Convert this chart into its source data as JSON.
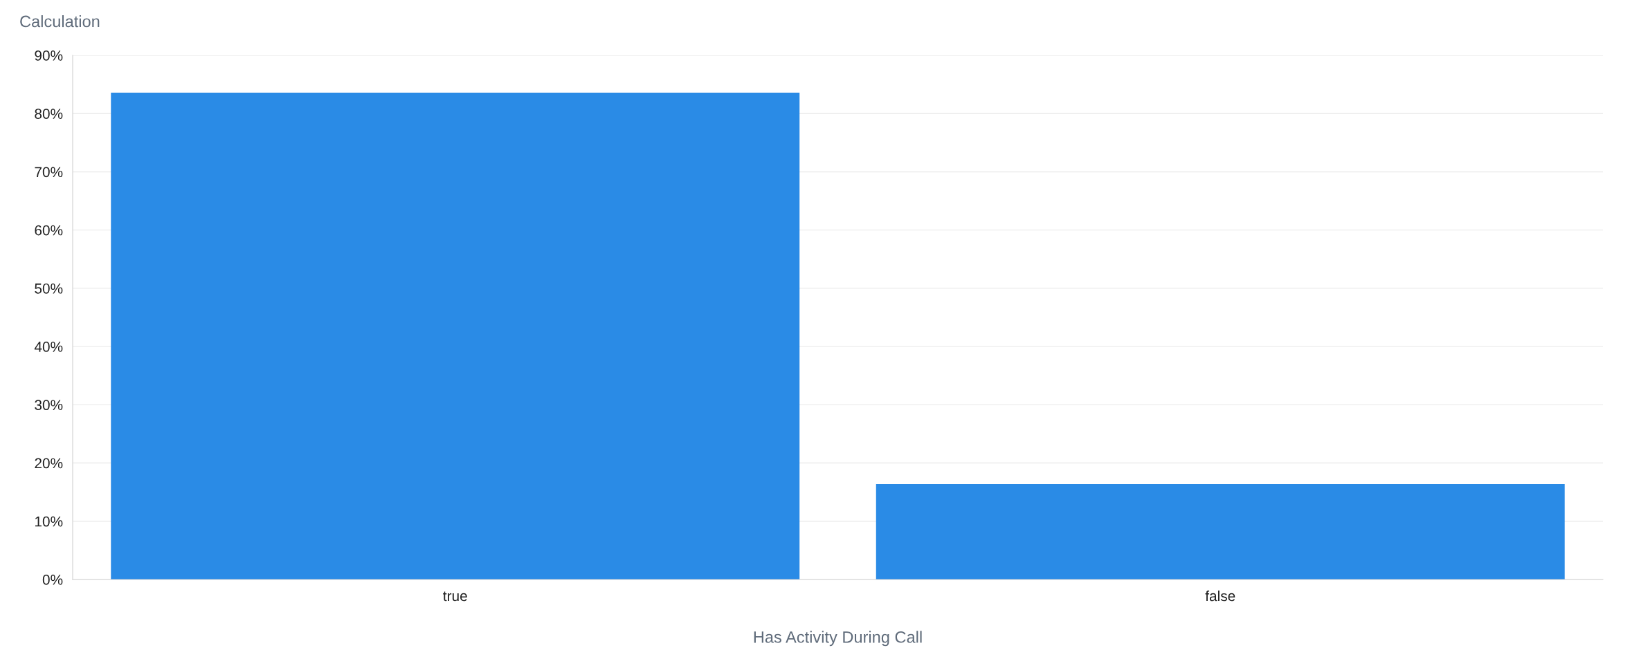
{
  "chart_data": {
    "type": "bar",
    "ylabel": "Calculation",
    "xlabel": "Has Activity During Call",
    "categories": [
      "true",
      "false"
    ],
    "series": [
      {
        "color": "#2a8be6",
        "values": [
          83.6,
          16.4
        ]
      }
    ],
    "ylim": [
      0,
      90
    ],
    "yticks": [
      {
        "value": 0,
        "label": "0%"
      },
      {
        "value": 10,
        "label": "10%"
      },
      {
        "value": 20,
        "label": "20%"
      },
      {
        "value": 30,
        "label": "30%"
      },
      {
        "value": 40,
        "label": "40%"
      },
      {
        "value": 50,
        "label": "50%"
      },
      {
        "value": 60,
        "label": "60%"
      },
      {
        "value": 70,
        "label": "70%"
      },
      {
        "value": 80,
        "label": "80%"
      },
      {
        "value": 90,
        "label": "90%"
      }
    ],
    "grid": "y",
    "legend": false
  }
}
